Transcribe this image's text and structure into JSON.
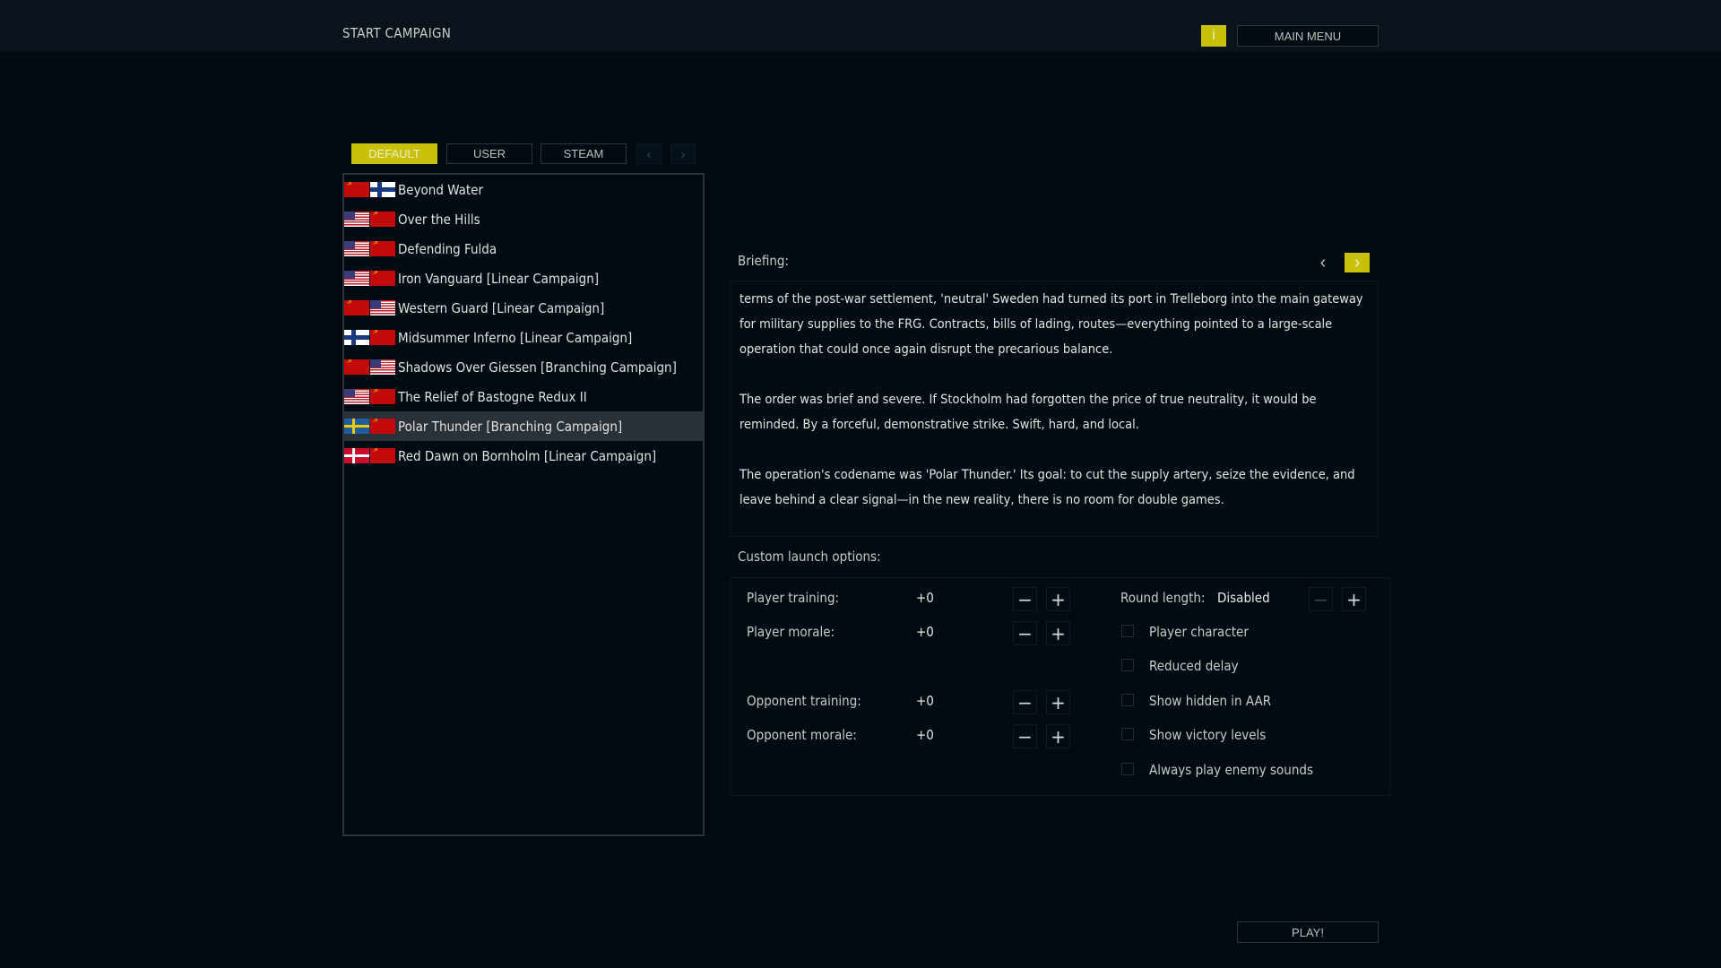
{
  "header": {
    "title": "START CAMPAIGN",
    "info_label": "i",
    "main_menu": "MAIN MENU"
  },
  "tabs": [
    {
      "label": "DEFAULT",
      "active": true
    },
    {
      "label": "USER"
    },
    {
      "label": "STEAM"
    }
  ],
  "tab_prev": "‹",
  "tab_next": "›",
  "campaigns": [
    {
      "name": "Beyond Water",
      "flags": [
        "ussr",
        "fin"
      ]
    },
    {
      "name": "Over the Hills",
      "flags": [
        "usa",
        "ussr"
      ]
    },
    {
      "name": "Defending Fulda",
      "flags": [
        "usa",
        "ussr"
      ]
    },
    {
      "name": "Iron Vanguard [Linear Campaign]",
      "flags": [
        "usa",
        "ussr"
      ]
    },
    {
      "name": "Western Guard [Linear Campaign]",
      "flags": [
        "ussr",
        "usa"
      ]
    },
    {
      "name": "Midsummer Inferno [Linear Campaign]",
      "flags": [
        "fin",
        "ussr"
      ]
    },
    {
      "name": "Shadows Over Giessen [Branching Campaign]",
      "flags": [
        "ussr",
        "usa"
      ]
    },
    {
      "name": "The Relief of Bastogne Redux II",
      "flags": [
        "usa",
        "ussr"
      ]
    },
    {
      "name": "Polar Thunder [Branching Campaign]",
      "flags": [
        "swe",
        "ussr"
      ],
      "selected": true
    },
    {
      "name": "Red Dawn on Bornholm [Linear Campaign]",
      "flags": [
        "den",
        "ussr"
      ]
    }
  ],
  "briefing": {
    "label": "Briefing:",
    "prev": "‹",
    "next": "›",
    "paragraphs": [
      "terms of the post-war settlement, 'neutral' Sweden had turned its port in Trelleborg into the main gateway for military supplies to the FRG. Contracts, bills of lading, routes—everything pointed to a large-scale operation that could once again disrupt the precarious balance.",
      "The order was brief and severe. If Stockholm had forgotten the price of true neutrality, it would be reminded. By a forceful, demonstrative strike. Swift, hard, and local.",
      "The operation's codename was 'Polar Thunder.' Its goal: to cut the supply artery, seize the evidence, and leave behind a clear signal—in the new reality, there is no room for double games."
    ]
  },
  "options": {
    "label": "Custom launch options:",
    "steppers": [
      {
        "label": "Player training:",
        "value": "+0"
      },
      {
        "label": "Player morale:",
        "value": "+0"
      },
      {
        "label": "Opponent training:",
        "value": "+0"
      },
      {
        "label": "Opponent morale:",
        "value": "+0"
      }
    ],
    "round_length": {
      "label": "Round length:",
      "value": "Disabled"
    },
    "checkboxes": [
      {
        "label": "Player character",
        "checked": false
      },
      {
        "label": "Reduced delay",
        "checked": false
      },
      {
        "label": "Show hidden in AAR",
        "checked": false
      },
      {
        "label": "Show victory levels",
        "checked": false
      },
      {
        "label": "Always play enemy sounds",
        "checked": false
      }
    ],
    "minus": "−",
    "plus": "+"
  },
  "play": "PLAY!",
  "colors": {
    "accent": "#c8c00a",
    "background": "#020a12",
    "selected_row": "#2a3139"
  }
}
